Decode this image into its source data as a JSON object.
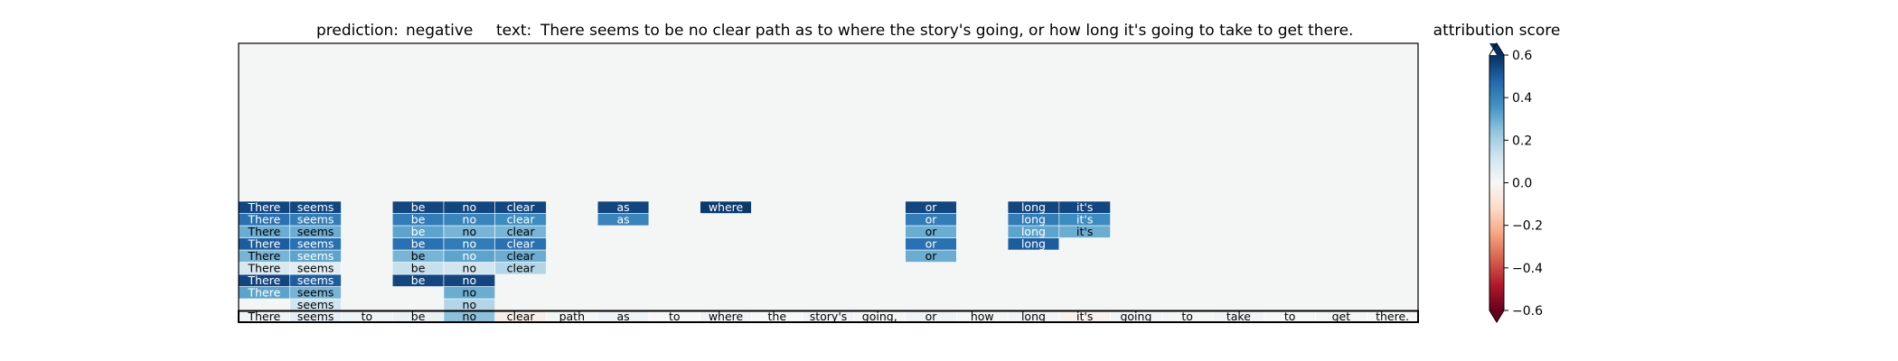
{
  "chart_data": {
    "type": "heatmap",
    "prediction_label": "prediction:",
    "prediction": "negative",
    "text_label": "text:",
    "text": "There seems to be no clear path as to where the story's going, or how long it's going to take to get there.",
    "colorbar": {
      "title": "attribution score",
      "range": [
        -0.6,
        0.6
      ],
      "ticks": [
        0.6,
        0.4,
        0.2,
        0.0,
        -0.2,
        -0.4,
        -0.6
      ],
      "tick_labels": [
        "0.6",
        "0.4",
        "0.2",
        "0.0",
        "−0.2",
        "−0.4",
        "−0.6"
      ],
      "colormap": "RdBu",
      "extend": "both"
    },
    "background_color": "#f4f6f6",
    "base_row": {
      "tokens": [
        "There",
        "seems",
        "to",
        "be",
        "no",
        "clear",
        "path",
        "as",
        "to",
        "where",
        "the",
        "story's",
        "going,",
        "or",
        "how",
        "long",
        "it's",
        "going",
        "to",
        "take",
        "to",
        "get",
        "there."
      ],
      "values": [
        0.03,
        0.06,
        0.03,
        0.04,
        0.25,
        -0.04,
        0.01,
        0.03,
        0.0,
        0.02,
        0.0,
        0.02,
        0.01,
        0.03,
        0.01,
        0.02,
        -0.02,
        0.02,
        0.01,
        0.02,
        0.0,
        0.01,
        0.0
      ]
    },
    "rows": [
      {
        "cells": [
          {
            "col": 1,
            "token": "seems",
            "value": 0.12
          },
          {
            "col": 4,
            "token": "no",
            "value": 0.18
          }
        ]
      },
      {
        "cells": [
          {
            "col": 0,
            "token": "There",
            "value": 0.32
          },
          {
            "col": 1,
            "token": "seems",
            "value": 0.28
          },
          {
            "col": 4,
            "token": "no",
            "value": 0.3
          }
        ]
      },
      {
        "cells": [
          {
            "col": 0,
            "token": "There",
            "value": 0.55
          },
          {
            "col": 1,
            "token": "seems",
            "value": 0.5
          },
          {
            "col": 3,
            "token": "be",
            "value": 0.55
          },
          {
            "col": 4,
            "token": "no",
            "value": 0.55
          }
        ]
      },
      {
        "cells": [
          {
            "col": 0,
            "token": "There",
            "value": 0.1
          },
          {
            "col": 1,
            "token": "seems",
            "value": 0.07
          },
          {
            "col": 3,
            "token": "be",
            "value": 0.14
          },
          {
            "col": 4,
            "token": "no",
            "value": 0.12
          },
          {
            "col": 5,
            "token": "clear",
            "value": 0.18
          }
        ]
      },
      {
        "cells": [
          {
            "col": 0,
            "token": "There",
            "value": 0.28
          },
          {
            "col": 1,
            "token": "seems",
            "value": 0.32
          },
          {
            "col": 3,
            "token": "be",
            "value": 0.28
          },
          {
            "col": 4,
            "token": "no",
            "value": 0.32
          },
          {
            "col": 5,
            "token": "clear",
            "value": 0.3
          },
          {
            "col": 13,
            "token": "or",
            "value": 0.3
          }
        ]
      },
      {
        "cells": [
          {
            "col": 0,
            "token": "There",
            "value": 0.5
          },
          {
            "col": 1,
            "token": "seems",
            "value": 0.45
          },
          {
            "col": 3,
            "token": "be",
            "value": 0.45
          },
          {
            "col": 4,
            "token": "no",
            "value": 0.42
          },
          {
            "col": 5,
            "token": "clear",
            "value": 0.45
          },
          {
            "col": 13,
            "token": "or",
            "value": 0.45
          },
          {
            "col": 15,
            "token": "long",
            "value": 0.5
          }
        ]
      },
      {
        "cells": [
          {
            "col": 0,
            "token": "There",
            "value": 0.3
          },
          {
            "col": 1,
            "token": "seems",
            "value": 0.3
          },
          {
            "col": 3,
            "token": "be",
            "value": 0.32
          },
          {
            "col": 4,
            "token": "no",
            "value": 0.28
          },
          {
            "col": 5,
            "token": "clear",
            "value": 0.28
          },
          {
            "col": 13,
            "token": "or",
            "value": 0.3
          },
          {
            "col": 15,
            "token": "long",
            "value": 0.32
          },
          {
            "col": 16,
            "token": "it's",
            "value": 0.3
          }
        ]
      },
      {
        "cells": [
          {
            "col": 0,
            "token": "There",
            "value": 0.45
          },
          {
            "col": 1,
            "token": "seems",
            "value": 0.42
          },
          {
            "col": 3,
            "token": "be",
            "value": 0.42
          },
          {
            "col": 4,
            "token": "no",
            "value": 0.4
          },
          {
            "col": 5,
            "token": "clear",
            "value": 0.38
          },
          {
            "col": 7,
            "token": "as",
            "value": 0.4
          },
          {
            "col": 13,
            "token": "or",
            "value": 0.42
          },
          {
            "col": 15,
            "token": "long",
            "value": 0.42
          },
          {
            "col": 16,
            "token": "it's",
            "value": 0.38
          }
        ]
      },
      {
        "cells": [
          {
            "col": 0,
            "token": "There",
            "value": 0.55
          },
          {
            "col": 1,
            "token": "seems",
            "value": 0.55
          },
          {
            "col": 3,
            "token": "be",
            "value": 0.55
          },
          {
            "col": 4,
            "token": "no",
            "value": 0.55
          },
          {
            "col": 5,
            "token": "clear",
            "value": 0.55
          },
          {
            "col": 7,
            "token": "as",
            "value": 0.55
          },
          {
            "col": 9,
            "token": "where",
            "value": 0.58
          },
          {
            "col": 13,
            "token": "or",
            "value": 0.55
          },
          {
            "col": 15,
            "token": "long",
            "value": 0.55
          },
          {
            "col": 16,
            "token": "it's",
            "value": 0.55
          }
        ]
      }
    ]
  }
}
